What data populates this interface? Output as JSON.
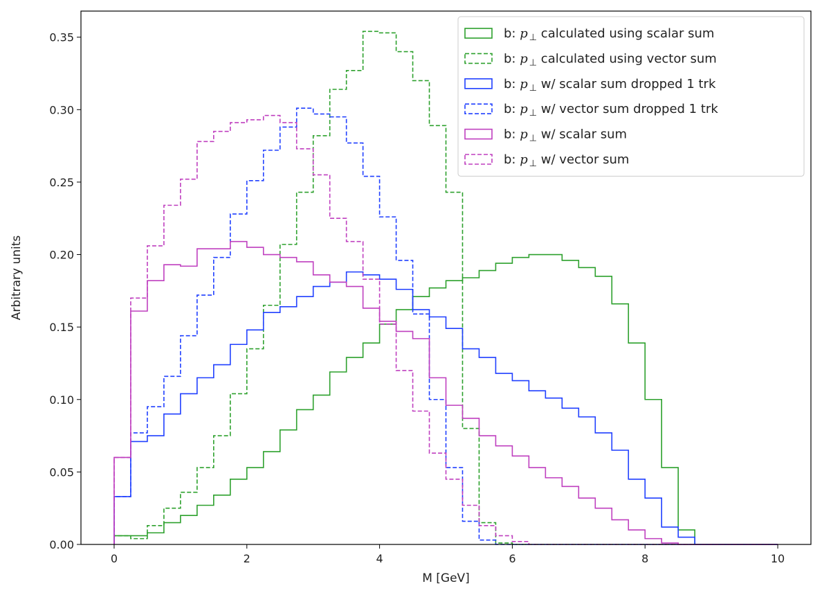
{
  "chart_data": {
    "type": "histogram",
    "xlabel": "M [GeV]",
    "ylabel": "Arbitrary units",
    "xlim": [
      -0.5,
      10.5
    ],
    "ylim": [
      0,
      0.368
    ],
    "xticks": [
      "0",
      "2",
      "4",
      "6",
      "8",
      "10"
    ],
    "yticks": [
      "0.00",
      "0.05",
      "0.10",
      "0.15",
      "0.20",
      "0.25",
      "0.30",
      "0.35"
    ],
    "legend_position": "top-right",
    "bin_edges": [
      0,
      0.25,
      0.5,
      0.75,
      1,
      1.25,
      1.5,
      1.75,
      2,
      2.25,
      2.5,
      2.75,
      3,
      3.25,
      3.5,
      3.75,
      4,
      4.25,
      4.5,
      4.75,
      5,
      5.25,
      5.5,
      5.75,
      6,
      6.25,
      6.5,
      6.75,
      7,
      7.25,
      7.5,
      7.75,
      8,
      8.25,
      8.5,
      8.75,
      9,
      9.25,
      9.5,
      9.75,
      10
    ],
    "series": [
      {
        "prefix": "b: ",
        "symbol": "p",
        "subscript": "⊥",
        "suffix": " calculated using scalar sum",
        "color": "#2ca02c",
        "dashed": false,
        "values": [
          0.006,
          0.006,
          0.008,
          0.015,
          0.02,
          0.027,
          0.034,
          0.045,
          0.053,
          0.064,
          0.079,
          0.093,
          0.103,
          0.119,
          0.129,
          0.139,
          0.152,
          0.162,
          0.171,
          0.177,
          0.182,
          0.184,
          0.189,
          0.194,
          0.198,
          0.2,
          0.2,
          0.196,
          0.191,
          0.185,
          0.166,
          0.139,
          0.1,
          0.053,
          0.01,
          0.0,
          0.0,
          0.0,
          0.0,
          0.0
        ]
      },
      {
        "prefix": "b: ",
        "symbol": "p",
        "subscript": "⊥",
        "suffix": " calculated using vector sum",
        "color": "#2ca02c",
        "dashed": true,
        "values": [
          0.006,
          0.004,
          0.013,
          0.025,
          0.036,
          0.053,
          0.075,
          0.104,
          0.135,
          0.165,
          0.207,
          0.243,
          0.282,
          0.314,
          0.327,
          0.354,
          0.353,
          0.34,
          0.32,
          0.289,
          0.243,
          0.08,
          0.015,
          0.001,
          0.0,
          0.0,
          0.0,
          0.0,
          0.0,
          0.0,
          0.0,
          0.0,
          0.0,
          0.0,
          0.0,
          0.0,
          0.0,
          0.0,
          0.0,
          0.0
        ]
      },
      {
        "prefix": "b: ",
        "symbol": "p",
        "subscript": "⊥",
        "suffix": " w/ scalar sum dropped 1 trk",
        "color": "#1f3fff",
        "dashed": false,
        "values": [
          0.033,
          0.071,
          0.075,
          0.09,
          0.104,
          0.115,
          0.124,
          0.138,
          0.148,
          0.16,
          0.164,
          0.171,
          0.178,
          0.181,
          0.188,
          0.186,
          0.183,
          0.176,
          0.162,
          0.157,
          0.149,
          0.135,
          0.129,
          0.118,
          0.113,
          0.106,
          0.101,
          0.094,
          0.088,
          0.077,
          0.065,
          0.045,
          0.032,
          0.012,
          0.005,
          0.0,
          0.0,
          0.0,
          0.0,
          0.0
        ]
      },
      {
        "prefix": "b: ",
        "symbol": "p",
        "subscript": "⊥",
        "suffix": " w/ vector sum dropped 1 trk",
        "color": "#1f3fff",
        "dashed": true,
        "values": [
          0.033,
          0.077,
          0.095,
          0.116,
          0.144,
          0.172,
          0.198,
          0.228,
          0.251,
          0.272,
          0.288,
          0.301,
          0.297,
          0.295,
          0.277,
          0.254,
          0.226,
          0.196,
          0.159,
          0.1,
          0.053,
          0.016,
          0.003,
          0.0,
          0.0,
          0.0,
          0.0,
          0.0,
          0.0,
          0.0,
          0.0,
          0.0,
          0.0,
          0.0,
          0.0,
          0.0,
          0.0,
          0.0,
          0.0,
          0.0
        ]
      },
      {
        "prefix": "b: ",
        "symbol": "p",
        "subscript": "⊥",
        "suffix": " w/ scalar sum",
        "color": "#bf3fbf",
        "dashed": false,
        "values": [
          0.06,
          0.161,
          0.182,
          0.193,
          0.192,
          0.204,
          0.204,
          0.209,
          0.205,
          0.2,
          0.198,
          0.195,
          0.186,
          0.181,
          0.178,
          0.163,
          0.154,
          0.147,
          0.142,
          0.115,
          0.096,
          0.087,
          0.075,
          0.068,
          0.061,
          0.053,
          0.046,
          0.04,
          0.032,
          0.025,
          0.017,
          0.01,
          0.004,
          0.001,
          0.0,
          0.0,
          0.0,
          0.0,
          0.0,
          0.0
        ]
      },
      {
        "prefix": "b: ",
        "symbol": "p",
        "subscript": "⊥",
        "suffix": " w/ vector sum",
        "color": "#bf3fbf",
        "dashed": true,
        "values": [
          0.06,
          0.17,
          0.206,
          0.234,
          0.252,
          0.278,
          0.285,
          0.291,
          0.293,
          0.296,
          0.291,
          0.273,
          0.255,
          0.225,
          0.209,
          0.183,
          0.152,
          0.12,
          0.092,
          0.063,
          0.045,
          0.027,
          0.013,
          0.006,
          0.002,
          0.0,
          0.0,
          0.0,
          0.0,
          0.0,
          0.0,
          0.0,
          0.0,
          0.0,
          0.0,
          0.0,
          0.0,
          0.0,
          0.0,
          0.0
        ]
      }
    ]
  }
}
